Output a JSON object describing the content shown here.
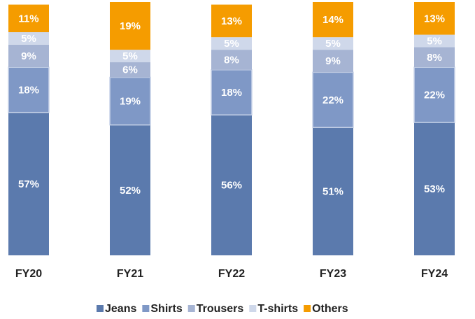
{
  "chart_data": {
    "type": "stacked_bar",
    "categories": [
      "FY20",
      "FY21",
      "FY22",
      "FY23",
      "FY24"
    ],
    "ylim": [
      0,
      101
    ],
    "series": [
      {
        "name": "Jeans",
        "color": "#5b7aad",
        "values": [
          57,
          52,
          56,
          51,
          53
        ],
        "value_labels": [
          "57%",
          "52%",
          "56%",
          "51%",
          "53%"
        ]
      },
      {
        "name": "Shirts",
        "color": "#7f98c6",
        "values": [
          18,
          19,
          18,
          22,
          22
        ],
        "value_labels": [
          "18%",
          "19%",
          "18%",
          "22%",
          "22%"
        ]
      },
      {
        "name": "Trousers",
        "color": "#a6b4d3",
        "values": [
          9,
          6,
          8,
          9,
          8
        ],
        "value_labels": [
          "9%",
          "6%",
          "8%",
          "9%",
          "8%"
        ]
      },
      {
        "name": "T-shirts",
        "color": "#cfd8ea",
        "values": [
          5,
          5,
          5,
          5,
          5
        ],
        "value_labels": [
          "5%",
          "5%",
          "5%",
          "5%",
          "5%"
        ]
      },
      {
        "name": "Others",
        "color": "#f59c00",
        "values": [
          11,
          19,
          13,
          14,
          13
        ],
        "value_labels": [
          "11%",
          "19%",
          "13%",
          "14%",
          "13%"
        ]
      }
    ],
    "legend": "bottom"
  }
}
